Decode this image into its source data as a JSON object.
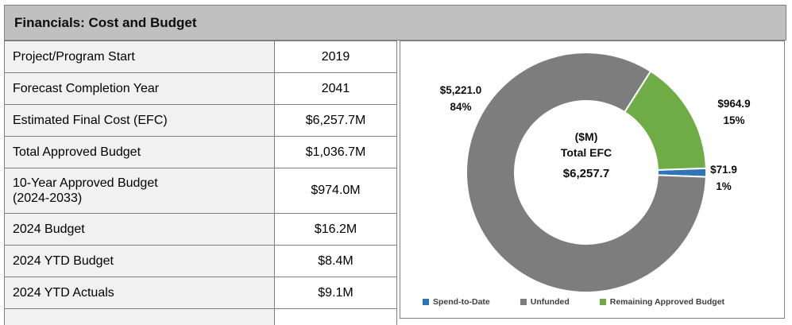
{
  "header": {
    "title": "Financials: Cost and Budget"
  },
  "table": {
    "rows": [
      {
        "label": "Project/Program Start",
        "value": "2019"
      },
      {
        "label": "Forecast Completion Year",
        "value": "2041"
      },
      {
        "label": "Estimated Final Cost (EFC)",
        "value": "$6,257.7M"
      },
      {
        "label": "Total Approved Budget",
        "value": "$1,036.7M"
      },
      {
        "label": "10-Year Approved Budget\n(2024-2033)",
        "value": "$974.0M",
        "two_line": true
      },
      {
        "label": "2024 Budget",
        "value": "$16.2M"
      },
      {
        "label": "2024 YTD Budget",
        "value": "$8.4M"
      },
      {
        "label": "2024 YTD Actuals",
        "value": "$9.1M"
      }
    ]
  },
  "chart_data": {
    "type": "pie",
    "subtype": "donut",
    "units": "$M",
    "total": 6257.7,
    "center_label": [
      "($M)",
      "Total EFC"
    ],
    "center_value": "$6,257.7",
    "legend_position": "bottom",
    "slices": [
      {
        "name": "Spend-to-Date",
        "value": 71.9,
        "label": "$71.9",
        "pct": "1%",
        "color": "#2E75B6"
      },
      {
        "name": "Unfunded",
        "value": 5221.0,
        "label": "$5,221.0",
        "pct": "84%",
        "color": "#7D7D7D"
      },
      {
        "name": "Remaining Approved Budget",
        "value": 964.9,
        "label": "$964.9",
        "pct": "15%",
        "color": "#6FAC46"
      }
    ]
  }
}
